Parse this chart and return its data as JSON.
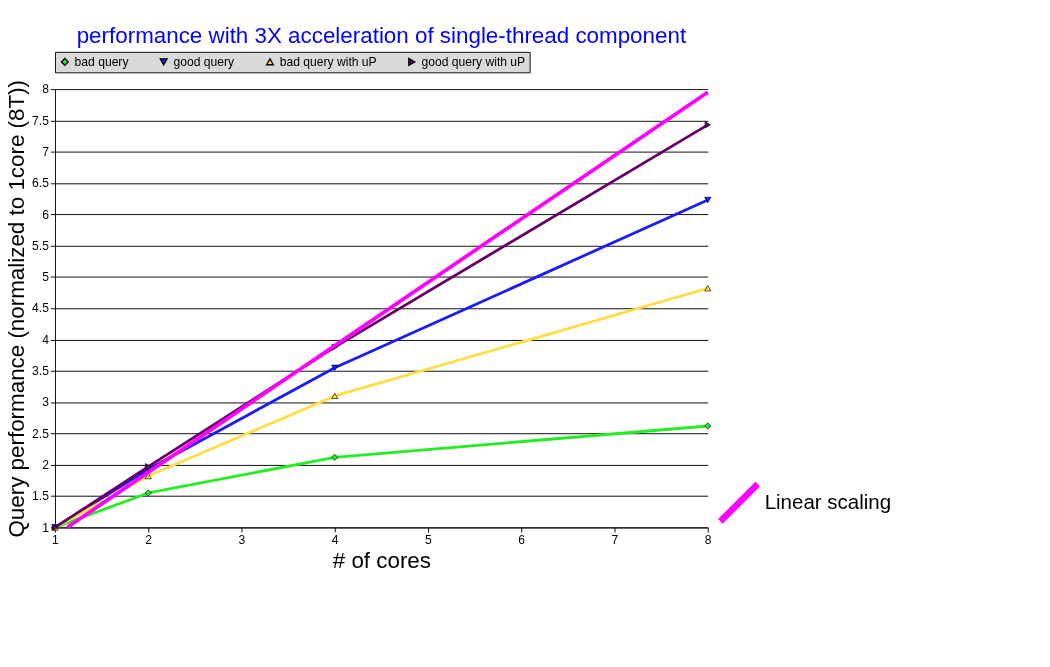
{
  "chart_data": {
    "type": "line",
    "title": "performance with 3X acceleration of single-thread component",
    "xlabel": "# of cores",
    "ylabel": "Query performance (normalized to 1core (8T))",
    "x": [
      1,
      2,
      4,
      8
    ],
    "xlim": [
      1,
      8
    ],
    "xticks": [
      1,
      2,
      3,
      4,
      5,
      6,
      7,
      8
    ],
    "ylim": [
      1,
      8
    ],
    "yticks": [
      1,
      1.5,
      2,
      2.5,
      3,
      3.5,
      4,
      4.5,
      5,
      5.5,
      6,
      6.5,
      7,
      7.5,
      8
    ],
    "grid": "y",
    "legend": "top",
    "series": [
      {
        "name": "bad query",
        "color": "#22ee22",
        "marker": "diamond",
        "values": [
          1,
          1.55,
          2.12,
          2.62
        ]
      },
      {
        "name": "good query",
        "color": "#1a1aff",
        "marker": "triangle-down",
        "values": [
          1,
          1.93,
          3.55,
          6.23
        ]
      },
      {
        "name": "bad query with uP",
        "color": "#ffdd44",
        "marker": "triangle-up",
        "values": [
          1,
          1.82,
          3.1,
          4.82
        ]
      },
      {
        "name": "good query with uP",
        "color": "#660066",
        "marker": "triangle-right",
        "values": [
          1,
          1.97,
          3.88,
          7.43
        ]
      },
      {
        "name": "Linear scaling",
        "color": "#ff00ff",
        "marker": "none",
        "x": [
          1.13,
          8
        ],
        "values": [
          1,
          7.95
        ]
      }
    ]
  }
}
